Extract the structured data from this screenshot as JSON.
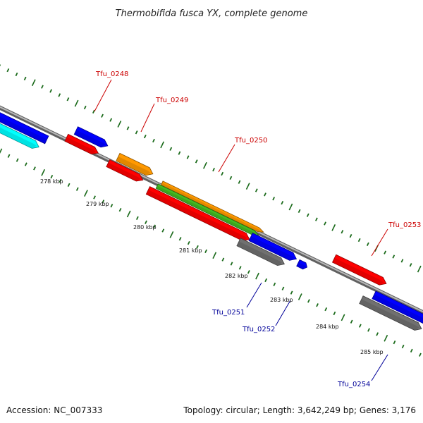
{
  "title": "Thermobifida fusca YX, complete genome",
  "footer": {
    "accession": "Accession: NC_007333",
    "summary": "Topology: circular; Length: 3,642,249 bp; Genes: 3,176"
  },
  "colors": {
    "backbone": "#808080",
    "tick": "#1a6a1a",
    "red": "#ff0000",
    "blue": "#0000ff",
    "gray": "#707070",
    "orange": "#ff9900",
    "green": "#44bb22",
    "cyan": "#00ffff",
    "label_red": "#cc0000",
    "label_blue": "#000099"
  },
  "scale_labels": [
    "278 kbp",
    "279 kbp",
    "280 kbp",
    "281 kbp",
    "282 kbp",
    "283 kbp",
    "284 kbp",
    "285 kbp"
  ],
  "gene_labels": [
    {
      "text": "Tfu_0248",
      "color": "label_red"
    },
    {
      "text": "Tfu_0249",
      "color": "label_red"
    },
    {
      "text": "Tfu_0250",
      "color": "label_red"
    },
    {
      "text": "Tfu_0253",
      "color": "label_red"
    },
    {
      "text": "Tfu_0251",
      "color": "label_blue"
    },
    {
      "text": "Tfu_0252",
      "color": "label_blue"
    },
    {
      "text": "Tfu_0254",
      "color": "label_blue"
    }
  ]
}
